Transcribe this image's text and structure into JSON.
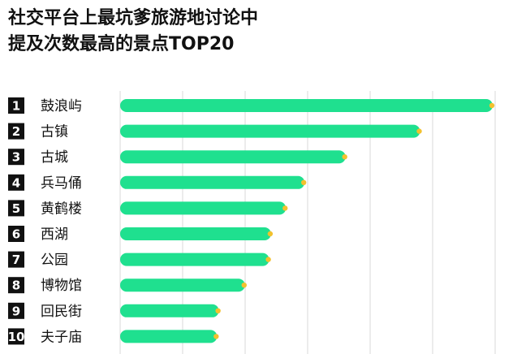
{
  "header": {
    "title_line_1": "社交平台上最坑爹旅游地讨论中",
    "title_line_2": "提及次数最高的景点TOP20"
  },
  "chart_data": {
    "type": "bar",
    "orientation": "horizontal",
    "title": "社交平台上最坑爹旅游地讨论中提及次数最高的景点TOP20",
    "ranks": [
      "1",
      "2",
      "3",
      "4",
      "5",
      "6",
      "7",
      "8",
      "9",
      "10"
    ],
    "categories": [
      "鼓浪屿",
      "古镇",
      "古城",
      "兵马俑",
      "黄鹤楼",
      "西湖",
      "公园",
      "博物馆",
      "回民街",
      "夫子庙"
    ],
    "values": [
      100,
      80.5,
      60.5,
      49.5,
      44.5,
      40.5,
      40,
      33.5,
      26.5,
      26
    ],
    "xlim": [
      0,
      100
    ],
    "value_unit": "relative mentions (no axis scale printed)",
    "grid": true,
    "legend": "none",
    "colors": {
      "bar": "#1fe08f",
      "bar_end_dot": "#f2c12e",
      "rank_box": "#111111",
      "grid": "#d8d8d8"
    }
  }
}
